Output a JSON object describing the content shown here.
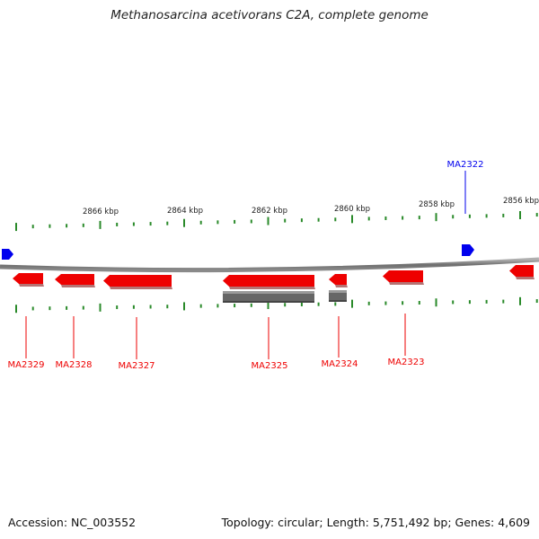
{
  "title": "Methanosarcina acetivorans C2A, complete genome",
  "footer": {
    "accession": "Accession: NC_003552",
    "summary": "Topology: circular; Length: 5,751,492 bp; Genes: 4,609"
  },
  "colors": {
    "forward_gene": "#0000ee",
    "reverse_gene": "#ee0000",
    "grey_feature": "#666666",
    "tick": "#2a8a2a",
    "backbone": "#808080"
  },
  "scale_labels": [
    "2866 kbp",
    "2864 kbp",
    "2862 kbp",
    "2860 kbp",
    "2858 kbp",
    "2856 kbp"
  ],
  "genes": [
    {
      "name": "MA2322",
      "strand": "forward"
    },
    {
      "name": "MA2329",
      "strand": "reverse"
    },
    {
      "name": "MA2328",
      "strand": "reverse"
    },
    {
      "name": "MA2327",
      "strand": "reverse"
    },
    {
      "name": "MA2325",
      "strand": "reverse"
    },
    {
      "name": "MA2324",
      "strand": "reverse"
    },
    {
      "name": "MA2323",
      "strand": "reverse"
    }
  ]
}
